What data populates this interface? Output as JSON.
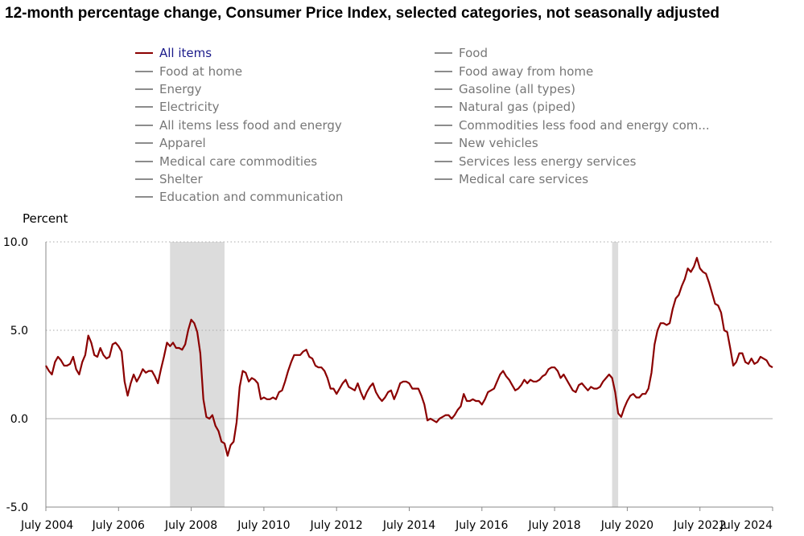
{
  "chart_data": {
    "type": "line",
    "title": "12-month percentage change, Consumer Price Index, selected categories, not seasonally adjusted",
    "ylabel": "Percent",
    "ylim": [
      -5,
      10
    ],
    "yticks": [
      {
        "value": 10,
        "label": "10.0"
      },
      {
        "value": 5,
        "label": "5.0"
      },
      {
        "value": 0,
        "label": "0.0"
      },
      {
        "value": -5,
        "label": "-5.0"
      }
    ],
    "xrange": [
      "2004-07",
      "2024-07"
    ],
    "xticks": [
      {
        "date": "2004-07",
        "label": "July 2004"
      },
      {
        "date": "2006-07",
        "label": "July 2006"
      },
      {
        "date": "2008-07",
        "label": "July 2008"
      },
      {
        "date": "2010-07",
        "label": "July 2010"
      },
      {
        "date": "2012-07",
        "label": "July 2012"
      },
      {
        "date": "2014-07",
        "label": "July 2014"
      },
      {
        "date": "2016-07",
        "label": "July 2016"
      },
      {
        "date": "2018-07",
        "label": "July 2018"
      },
      {
        "date": "2020-07",
        "label": "July 2020"
      },
      {
        "date": "2022-07",
        "label": "July 2022"
      },
      {
        "date": "2024-07",
        "label": "July 2024"
      }
    ],
    "recessions": [
      {
        "start": "2007-12",
        "end": "2009-06"
      },
      {
        "start": "2020-02",
        "end": "2020-04"
      }
    ],
    "grid": "horizontal dotted at major ticks",
    "legend_placement": "top",
    "legend": [
      {
        "name": "All items",
        "active": true
      },
      {
        "name": "Food at home",
        "active": false
      },
      {
        "name": "Energy",
        "active": false
      },
      {
        "name": "Electricity",
        "active": false
      },
      {
        "name": "All items less food and energy",
        "active": false
      },
      {
        "name": "Apparel",
        "active": false
      },
      {
        "name": "Medical care commodities",
        "active": false
      },
      {
        "name": "Shelter",
        "active": false
      },
      {
        "name": "Education and communication",
        "active": false
      },
      {
        "name": "Food",
        "active": false
      },
      {
        "name": "Food away from home",
        "active": false
      },
      {
        "name": "Gasoline (all types)",
        "active": false
      },
      {
        "name": "Natural gas (piped)",
        "active": false
      },
      {
        "name": "Commodities less food and energy com...",
        "active": false
      },
      {
        "name": "New vehicles",
        "active": false
      },
      {
        "name": "Services less energy services",
        "active": false
      },
      {
        "name": "Medical care services",
        "active": false
      }
    ],
    "series": [
      {
        "name": "All items",
        "color": "#8b0000",
        "start": "2004-07",
        "values": [
          3.0,
          2.7,
          2.5,
          3.2,
          3.5,
          3.3,
          3.0,
          3.0,
          3.1,
          3.5,
          2.8,
          2.5,
          3.2,
          3.6,
          4.7,
          4.3,
          3.6,
          3.5,
          4.0,
          3.6,
          3.4,
          3.5,
          4.2,
          4.3,
          4.1,
          3.8,
          2.1,
          1.3,
          2.0,
          2.5,
          2.1,
          2.4,
          2.8,
          2.6,
          2.7,
          2.7,
          2.4,
          2.0,
          2.8,
          3.5,
          4.3,
          4.1,
          4.3,
          4.0,
          4.0,
          3.9,
          4.2,
          5.0,
          5.6,
          5.4,
          4.9,
          3.7,
          1.1,
          0.1,
          0.0,
          0.2,
          -0.4,
          -0.7,
          -1.3,
          -1.4,
          -2.1,
          -1.5,
          -1.3,
          -0.2,
          1.8,
          2.7,
          2.6,
          2.1,
          2.3,
          2.2,
          2.0,
          1.1,
          1.2,
          1.1,
          1.1,
          1.2,
          1.1,
          1.5,
          1.6,
          2.1,
          2.7,
          3.2,
          3.6,
          3.6,
          3.6,
          3.8,
          3.9,
          3.5,
          3.4,
          3.0,
          2.9,
          2.9,
          2.7,
          2.3,
          1.7,
          1.7,
          1.4,
          1.7,
          2.0,
          2.2,
          1.8,
          1.7,
          1.6,
          2.0,
          1.5,
          1.1,
          1.5,
          1.8,
          2.0,
          1.5,
          1.2,
          1.0,
          1.2,
          1.5,
          1.6,
          1.1,
          1.5,
          2.0,
          2.1,
          2.1,
          2.0,
          1.7,
          1.7,
          1.7,
          1.3,
          0.8,
          -0.1,
          0.0,
          -0.1,
          -0.2,
          0.0,
          0.1,
          0.2,
          0.2,
          0.0,
          0.2,
          0.5,
          0.7,
          1.4,
          1.0,
          1.0,
          1.1,
          1.0,
          1.0,
          0.8,
          1.1,
          1.5,
          1.6,
          1.7,
          2.1,
          2.5,
          2.7,
          2.4,
          2.2,
          1.9,
          1.6,
          1.7,
          1.9,
          2.2,
          2.0,
          2.2,
          2.1,
          2.1,
          2.2,
          2.4,
          2.5,
          2.8,
          2.9,
          2.9,
          2.7,
          2.3,
          2.5,
          2.2,
          1.9,
          1.6,
          1.5,
          1.9,
          2.0,
          1.8,
          1.6,
          1.8,
          1.7,
          1.7,
          1.8,
          2.1,
          2.3,
          2.5,
          2.3,
          1.5,
          0.3,
          0.1,
          0.6,
          1.0,
          1.3,
          1.4,
          1.2,
          1.2,
          1.4,
          1.4,
          1.7,
          2.6,
          4.2,
          5.0,
          5.4,
          5.4,
          5.3,
          5.4,
          6.2,
          6.8,
          7.0,
          7.5,
          7.9,
          8.5,
          8.3,
          8.6,
          9.1,
          8.5,
          8.3,
          8.2,
          7.7,
          7.1,
          6.5,
          6.4,
          6.0,
          5.0,
          4.9,
          4.0,
          3.0,
          3.2,
          3.7,
          3.7,
          3.2,
          3.1,
          3.4,
          3.1,
          3.2,
          3.5,
          3.4,
          3.3,
          3.0,
          2.9
        ]
      }
    ]
  }
}
